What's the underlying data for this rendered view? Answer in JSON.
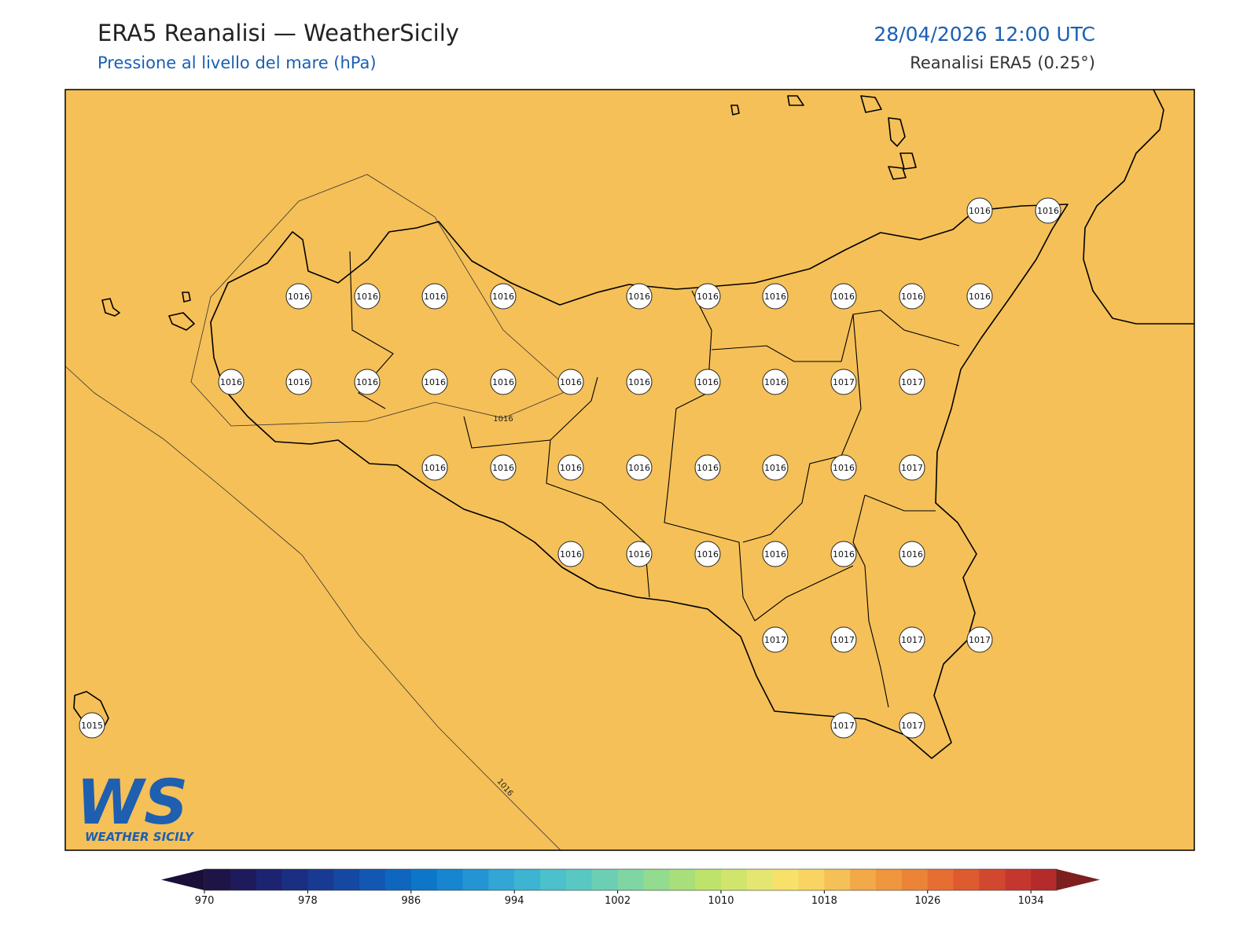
{
  "header": {
    "title": "ERA5 Reanalisi — WeatherSicily",
    "subtitle": "Pressione al livello del mare (hPa)",
    "datetime": "28/04/2026 12:00 UTC",
    "source": "Reanalisi ERA5 (0.25°)"
  },
  "map": {
    "contour_labels": [
      "1016",
      "1016"
    ],
    "stations": [
      1016,
      1016,
      1016,
      1016,
      1016,
      1016,
      1016,
      1016,
      1016,
      1016,
      1016,
      1016,
      1016,
      1016,
      1016,
      1016,
      1016,
      1016,
      1016,
      1016,
      1016,
      1017,
      1017,
      1016,
      1016,
      1016,
      1016,
      1016,
      1016,
      1016,
      1017,
      1016,
      1016,
      1016,
      1016,
      1016,
      1016,
      1017,
      1017,
      1017,
      1017,
      1015,
      1017,
      1017
    ]
  },
  "colorbar": {
    "lim": [
      970,
      1036
    ],
    "ticks": [
      970,
      978,
      986,
      994,
      1002,
      1010,
      1018,
      1026,
      1034
    ],
    "under_color": "#1b0f3a",
    "over_color": "#7d1f1f",
    "colors": [
      "#1f1446",
      "#1e1a5c",
      "#1c2370",
      "#1a2e82",
      "#183a92",
      "#1548a2",
      "#1257b2",
      "#0f66bf",
      "#0e76c9",
      "#1785cf",
      "#2395d3",
      "#32a6d4",
      "#3db4d2",
      "#4cc0cc",
      "#5ac8c2",
      "#6ccfb4",
      "#7fd6a3",
      "#93db8e",
      "#a8df7b",
      "#bee36b",
      "#d1e56c",
      "#e4e672",
      "#f7e16b",
      "#fad462",
      "#f5c057",
      "#f2a948",
      "#ef963f",
      "#ec8438",
      "#e76e32",
      "#de5a2f",
      "#d2482f",
      "#c5372e",
      "#b52a2b"
    ]
  },
  "logo": {
    "mark": "WS",
    "text": "WEATHER SICILY"
  }
}
